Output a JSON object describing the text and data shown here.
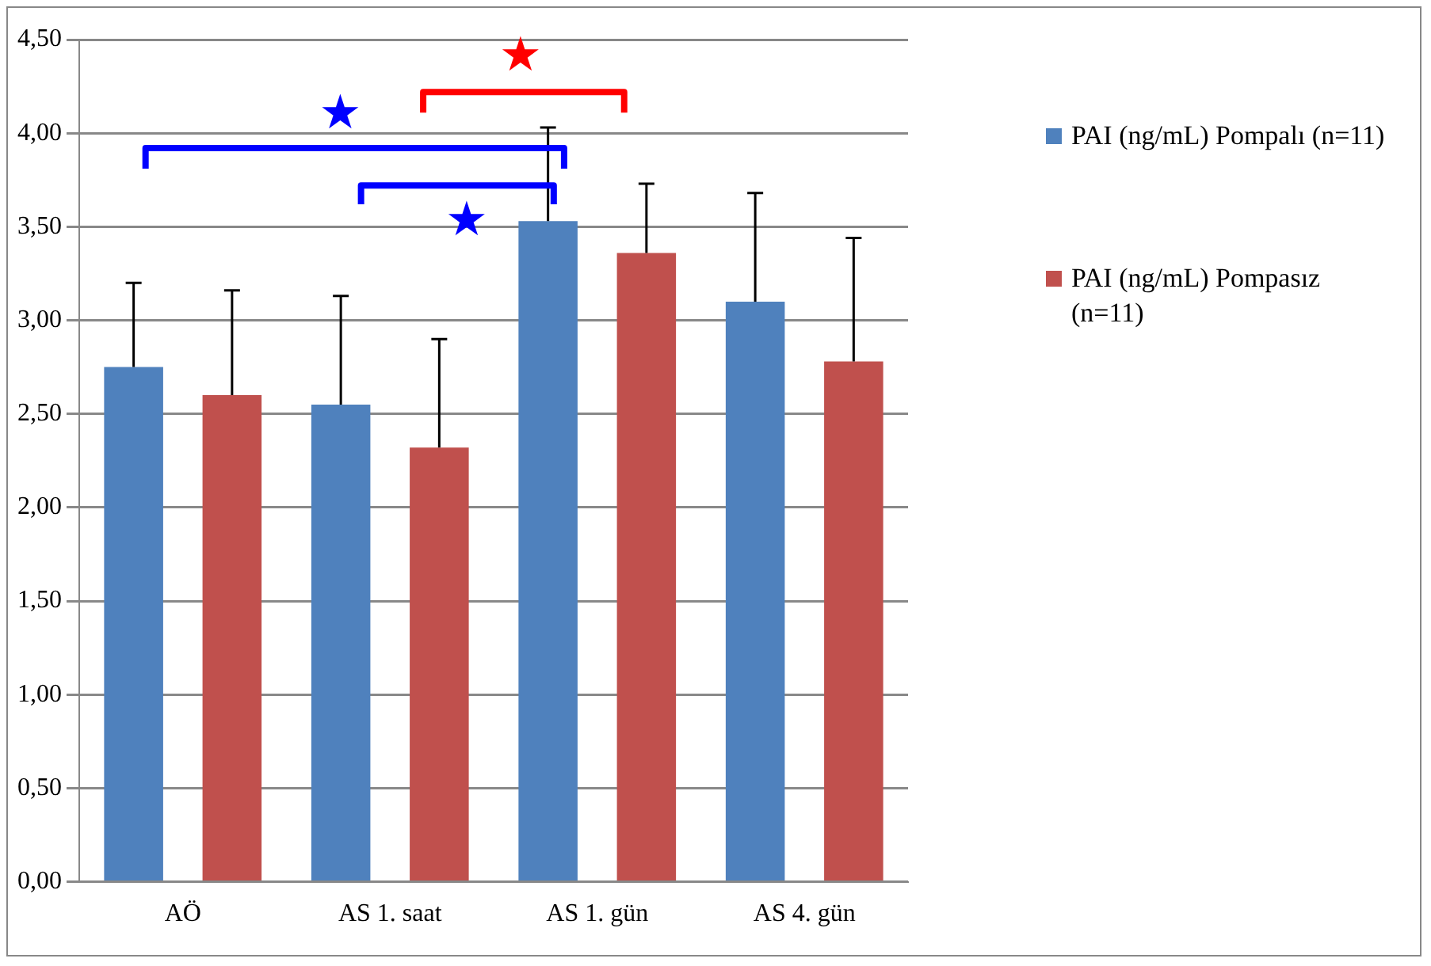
{
  "chart_data": {
    "type": "bar",
    "categories": [
      "AÖ",
      "AS 1. saat",
      "AS 1. gün",
      "AS 4. gün"
    ],
    "series": [
      {
        "name": "PAI (ng/mL) Pompalı (n=11)",
        "color": "#4f81bd",
        "values": [
          2.75,
          2.55,
          3.53,
          3.1
        ],
        "errors": [
          [
            2.75,
            3.2
          ],
          [
            2.55,
            3.13
          ],
          [
            3.53,
            4.03
          ],
          [
            3.1,
            3.68
          ]
        ]
      },
      {
        "name": "PAI (ng/mL) Pompasız (n=11)",
        "color": "#c0504d",
        "values": [
          2.6,
          2.32,
          3.36,
          2.78
        ],
        "errors": [
          [
            2.6,
            3.16
          ],
          [
            2.32,
            2.9
          ],
          [
            3.36,
            3.73
          ],
          [
            2.78,
            3.44
          ]
        ]
      }
    ],
    "ylim": [
      0,
      4.5
    ],
    "yticks": [
      {
        "value": 0,
        "label": "0,00"
      },
      {
        "value": 0.5,
        "label": "0,50"
      },
      {
        "value": 1,
        "label": "1,00"
      },
      {
        "value": 1.5,
        "label": "1,50"
      },
      {
        "value": 2,
        "label": "2,00"
      },
      {
        "value": 2.5,
        "label": "2,50"
      },
      {
        "value": 3,
        "label": "3,00"
      },
      {
        "value": 3.5,
        "label": "3,50"
      },
      {
        "value": 4,
        "label": "4,00"
      },
      {
        "value": 4.5,
        "label": "4,50"
      }
    ],
    "grid": "y",
    "legend": "right",
    "annotations": [
      "★",
      "★",
      "★"
    ]
  }
}
